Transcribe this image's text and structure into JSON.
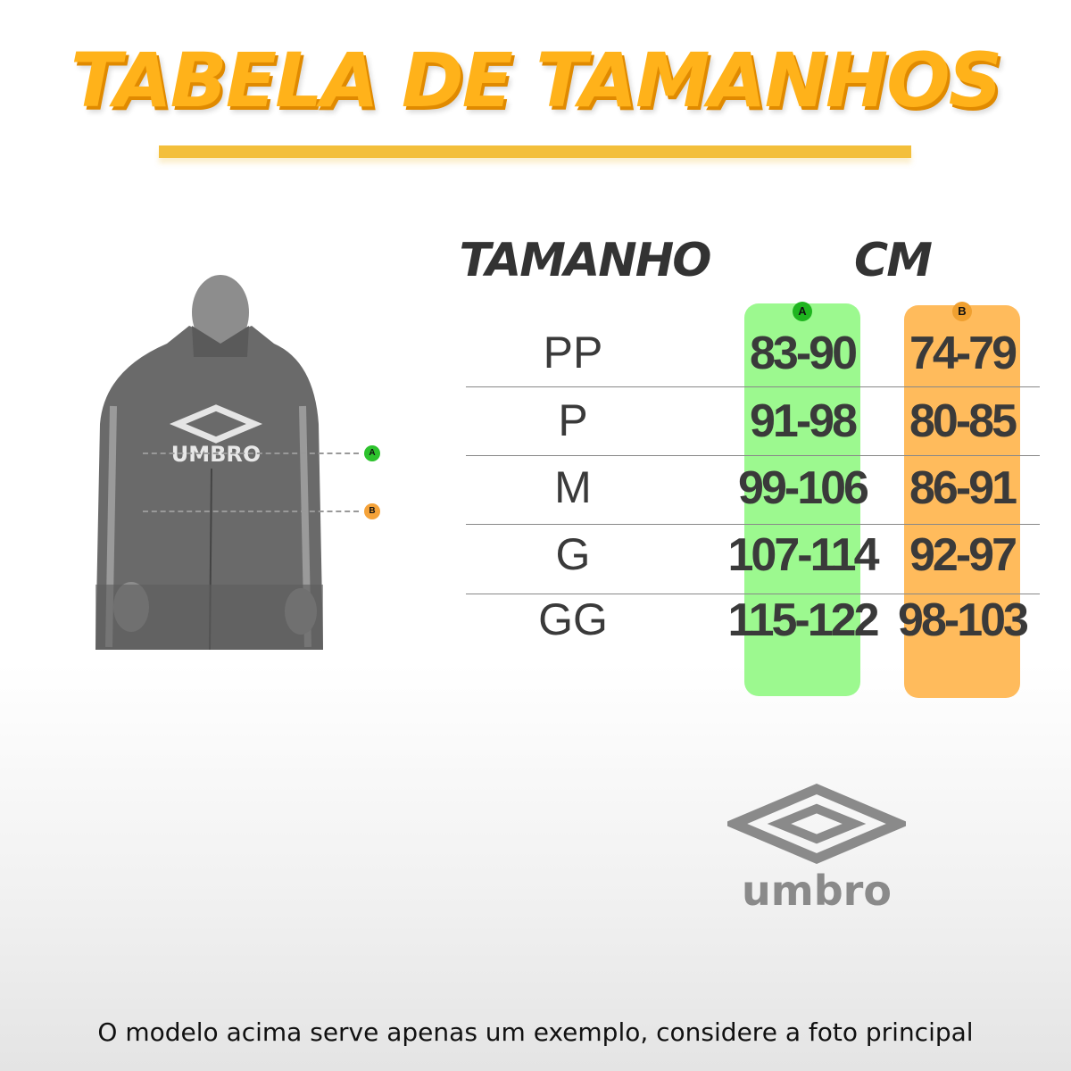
{
  "title": "TABELA DE TAMANHOS",
  "table": {
    "headers": {
      "size": "TAMANHO",
      "cm": "CM"
    },
    "measure_labels": {
      "a": "A",
      "b": "B"
    },
    "colors": {
      "a": "#9cf98f",
      "b": "#ffbb5c",
      "a_badge": "#1fb51f",
      "b_badge": "#f0a030"
    },
    "rows": [
      {
        "size": "PP",
        "a": "83-90",
        "b": "74-79"
      },
      {
        "size": "P",
        "a": "91-98",
        "b": "80-85"
      },
      {
        "size": "M",
        "a": "99-106",
        "b": "86-91"
      },
      {
        "size": "G",
        "a": "107-114",
        "b": "92-97"
      },
      {
        "size": "GG",
        "a": "115-122",
        "b": "98-103"
      }
    ]
  },
  "figure": {
    "jacket_logo": "UMBRO",
    "marker_a": "A",
    "marker_b": "B"
  },
  "brand": {
    "name": "umbro"
  },
  "footer": "O modelo acima serve apenas um exemplo, considere a foto principal"
}
